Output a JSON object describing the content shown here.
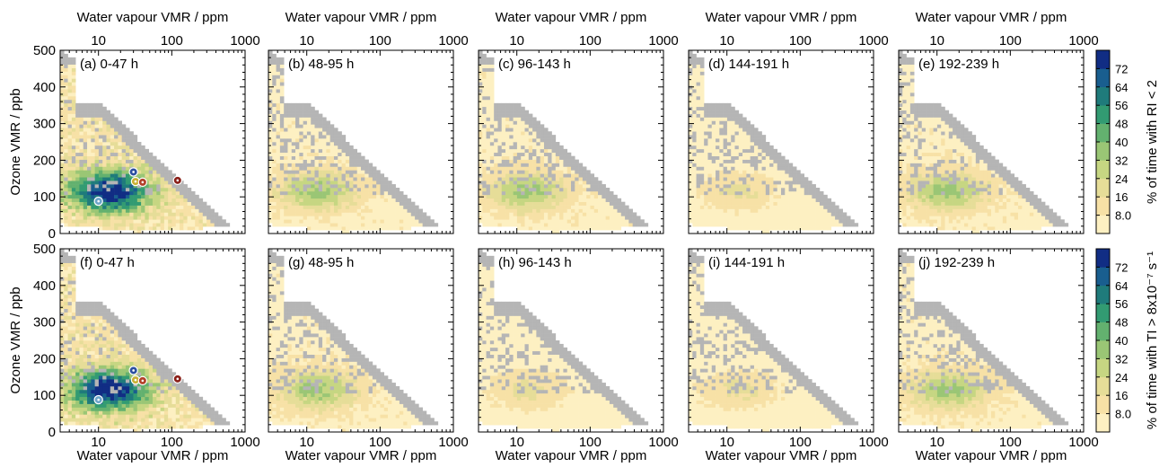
{
  "figure": {
    "x_axis_label": "Water vapour VMR / ppm",
    "y_axis_label": "Ozone VMR / ppb",
    "x_tick_labels": [
      "10",
      "100",
      "1000"
    ],
    "y_tick_labels": [
      "0",
      "100",
      "200",
      "300",
      "400",
      "500"
    ],
    "colorbar_top_label": "% of time with RI < 2",
    "colorbar_bottom_label": "% of time with TI > 8x10⁻⁷ s⁻¹",
    "colorbar_tick_labels": [
      "8.0",
      "16",
      "24",
      "32",
      "40",
      "48",
      "56",
      "64",
      "72"
    ]
  },
  "colors": {
    "no_data": "#b5b5b5",
    "colormap": [
      "#fdf0c2",
      "#f7e1a6",
      "#e6dd98",
      "#c6d682",
      "#9ac675",
      "#63b16f",
      "#329b72",
      "#1f7b7b",
      "#195e8f",
      "#112d84"
    ],
    "markers": [
      "#2b4fa0",
      "#6da4c9",
      "#c9b033",
      "#b3402a",
      "#8a1f18"
    ]
  },
  "chart_data": [
    {
      "panel": "(a) 0-47 h",
      "row": "RI < 2",
      "type": "heatmap",
      "xscale": "log",
      "xlim": [
        3,
        1000
      ],
      "ylim": [
        0,
        500
      ],
      "intensity": "high",
      "grey_extent": "moderate"
    },
    {
      "panel": "(b) 48-95 h",
      "row": "RI < 2",
      "type": "heatmap",
      "xscale": "log",
      "xlim": [
        3,
        1000
      ],
      "ylim": [
        0,
        500
      ],
      "intensity": "low",
      "grey_extent": "large"
    },
    {
      "panel": "(c) 96-143 h",
      "row": "RI < 2",
      "type": "heatmap",
      "xscale": "log",
      "xlim": [
        3,
        1000
      ],
      "ylim": [
        0,
        500
      ],
      "intensity": "low",
      "grey_extent": "large"
    },
    {
      "panel": "(d) 144-191 h",
      "row": "RI < 2",
      "type": "heatmap",
      "xscale": "log",
      "xlim": [
        3,
        1000
      ],
      "ylim": [
        0,
        500
      ],
      "intensity": "very low",
      "grey_extent": "large"
    },
    {
      "panel": "(e) 192-239 h",
      "row": "RI < 2",
      "type": "heatmap",
      "xscale": "log",
      "xlim": [
        3,
        1000
      ],
      "ylim": [
        0,
        500
      ],
      "intensity": "low",
      "grey_extent": "large"
    },
    {
      "panel": "(f) 0-47 h",
      "row": "TI > 8x10^-7 s^-1",
      "type": "heatmap",
      "xscale": "log",
      "xlim": [
        3,
        1000
      ],
      "ylim": [
        0,
        500
      ],
      "intensity": "high",
      "grey_extent": "moderate"
    },
    {
      "panel": "(g) 48-95 h",
      "row": "TI > 8x10^-7 s^-1",
      "type": "heatmap",
      "xscale": "log",
      "xlim": [
        3,
        1000
      ],
      "ylim": [
        0,
        500
      ],
      "intensity": "low",
      "grey_extent": "large"
    },
    {
      "panel": "(h) 96-143 h",
      "row": "TI > 8x10^-7 s^-1",
      "type": "heatmap",
      "xscale": "log",
      "xlim": [
        3,
        1000
      ],
      "ylim": [
        0,
        500
      ],
      "intensity": "very low",
      "grey_extent": "large"
    },
    {
      "panel": "(i) 144-191 h",
      "row": "TI > 8x10^-7 s^-1",
      "type": "heatmap",
      "xscale": "log",
      "xlim": [
        3,
        1000
      ],
      "ylim": [
        0,
        500
      ],
      "intensity": "very low",
      "grey_extent": "large"
    },
    {
      "panel": "(j) 192-239 h",
      "row": "TI > 8x10^-7 s^-1",
      "type": "heatmap",
      "xscale": "log",
      "xlim": [
        3,
        1000
      ],
      "ylim": [
        0,
        500
      ],
      "intensity": "low",
      "grey_extent": "large"
    }
  ],
  "markers": {
    "type": "scatter",
    "points": [
      {
        "x": 30,
        "y": 168
      },
      {
        "x": 10,
        "y": 88
      },
      {
        "x": 32,
        "y": 142
      },
      {
        "x": 40,
        "y": 140
      },
      {
        "x": 120,
        "y": 145
      }
    ]
  }
}
